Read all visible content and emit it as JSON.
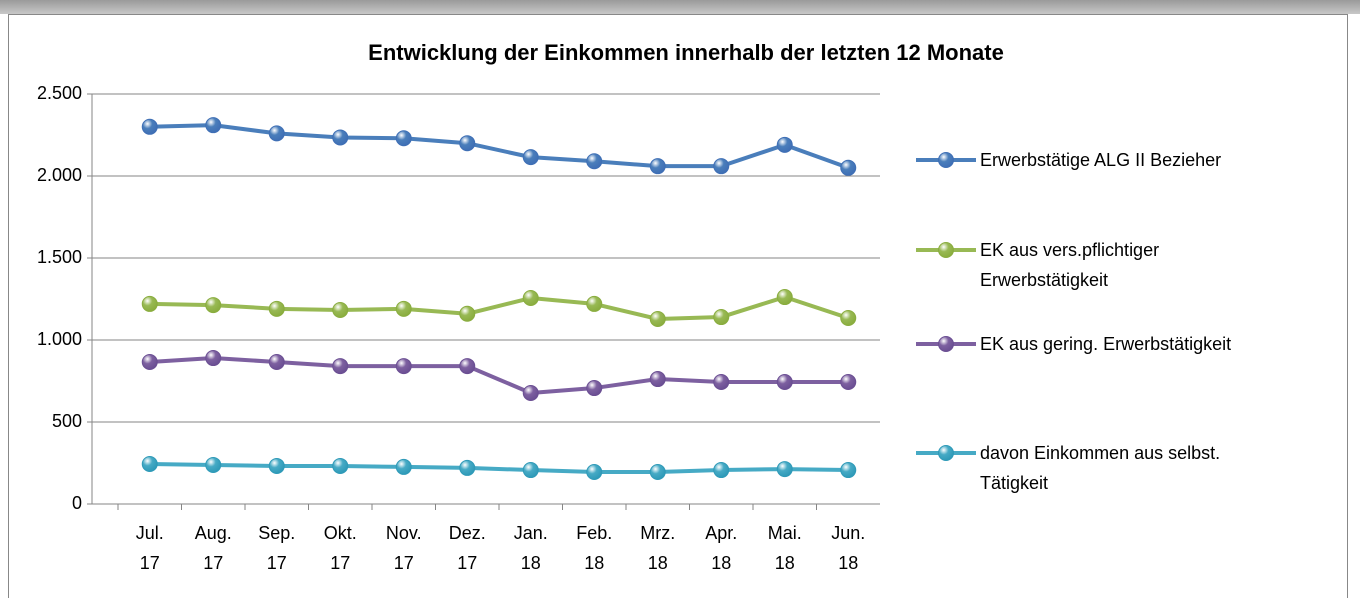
{
  "chart_data": {
    "type": "line",
    "title": "Entwicklung der Einkommen innerhalb der letzten 12 Monate",
    "categories": [
      "Jul. 17",
      "Aug. 17",
      "Sep. 17",
      "Okt. 17",
      "Nov. 17",
      "Dez. 17",
      "Jan. 18",
      "Feb. 18",
      "Mrz. 18",
      "Apr. 18",
      "Mai. 18",
      "Jun. 18"
    ],
    "series": [
      {
        "name": "Erwerbstätige ALG II Bezieher",
        "color": "#4a7ebb",
        "marker_color": "#3f6fb5",
        "values": [
          2300,
          2310,
          2260,
          2235,
          2230,
          2200,
          2115,
          2090,
          2060,
          2060,
          2190,
          2050
        ]
      },
      {
        "name": "EK aus vers.pflichtiger Erwerbstätigkeit",
        "color": "#98b954",
        "marker_color": "#8aad3f",
        "values": [
          1220,
          1213,
          1190,
          1183,
          1190,
          1160,
          1256,
          1220,
          1128,
          1140,
          1262,
          1134
        ]
      },
      {
        "name": "EK aus gering. Erwerbstätigkeit",
        "color": "#7d60a0",
        "marker_color": "#6b4f93",
        "values": [
          866,
          890,
          866,
          841,
          841,
          841,
          677,
          707,
          762,
          744,
          744,
          744
        ]
      },
      {
        "name": "davon Einkommen aus selbst. Tätigkeit",
        "color": "#46aac5",
        "marker_color": "#2f9ab8",
        "values": [
          244,
          238,
          232,
          232,
          226,
          220,
          207,
          195,
          195,
          207,
          213,
          207
        ]
      }
    ],
    "ylim": [
      0,
      2500
    ],
    "yticks": [
      0,
      500,
      {
        "value": 1000,
        "label": "1.000"
      },
      {
        "value": 1500,
        "label": "1.500"
      },
      {
        "value": 2000,
        "label": "2.000"
      },
      {
        "value": 2500,
        "label": "2.500"
      }
    ],
    "grid": true,
    "legend": "right"
  }
}
